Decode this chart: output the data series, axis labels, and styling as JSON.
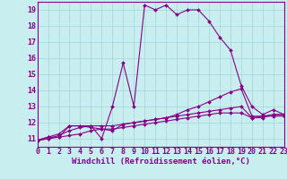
{
  "xlabel": "Windchill (Refroidissement éolien,°C)",
  "bg_color": "#c8eef0",
  "grid_color": "#a8d8dc",
  "line_color": "#880088",
  "xlim": [
    0,
    23
  ],
  "ylim": [
    10.5,
    19.5
  ],
  "yticks": [
    11,
    12,
    13,
    14,
    15,
    16,
    17,
    18,
    19
  ],
  "xticks": [
    0,
    1,
    2,
    3,
    4,
    5,
    6,
    7,
    8,
    9,
    10,
    11,
    12,
    13,
    14,
    15,
    16,
    17,
    18,
    19,
    20,
    21,
    22,
    23
  ],
  "curves": [
    [
      10.9,
      11.1,
      11.1,
      11.8,
      11.8,
      11.8,
      11.0,
      13.0,
      15.7,
      13.0,
      19.3,
      19.0,
      19.3,
      18.7,
      19.0,
      19.0,
      18.3,
      17.3,
      16.5,
      14.3,
      13.0,
      12.5,
      12.8,
      12.5
    ],
    [
      10.9,
      11.1,
      11.3,
      11.8,
      11.8,
      11.7,
      11.6,
      11.5,
      11.9,
      12.0,
      12.1,
      12.2,
      12.3,
      12.5,
      12.8,
      13.0,
      13.3,
      13.6,
      13.9,
      14.1,
      12.4,
      12.4,
      12.4,
      12.4
    ],
    [
      10.9,
      11.0,
      11.2,
      11.5,
      11.7,
      11.8,
      11.8,
      11.8,
      11.9,
      12.0,
      12.1,
      12.2,
      12.3,
      12.4,
      12.5,
      12.6,
      12.7,
      12.8,
      12.9,
      13.0,
      12.3,
      12.3,
      12.5,
      12.5
    ],
    [
      10.9,
      11.0,
      11.1,
      11.2,
      11.3,
      11.5,
      11.6,
      11.6,
      11.7,
      11.8,
      11.9,
      12.0,
      12.1,
      12.2,
      12.3,
      12.4,
      12.5,
      12.6,
      12.6,
      12.6,
      12.3,
      12.4,
      12.5,
      12.5
    ]
  ],
  "tick_fontsize": 6.0,
  "xlabel_fontsize": 6.5
}
